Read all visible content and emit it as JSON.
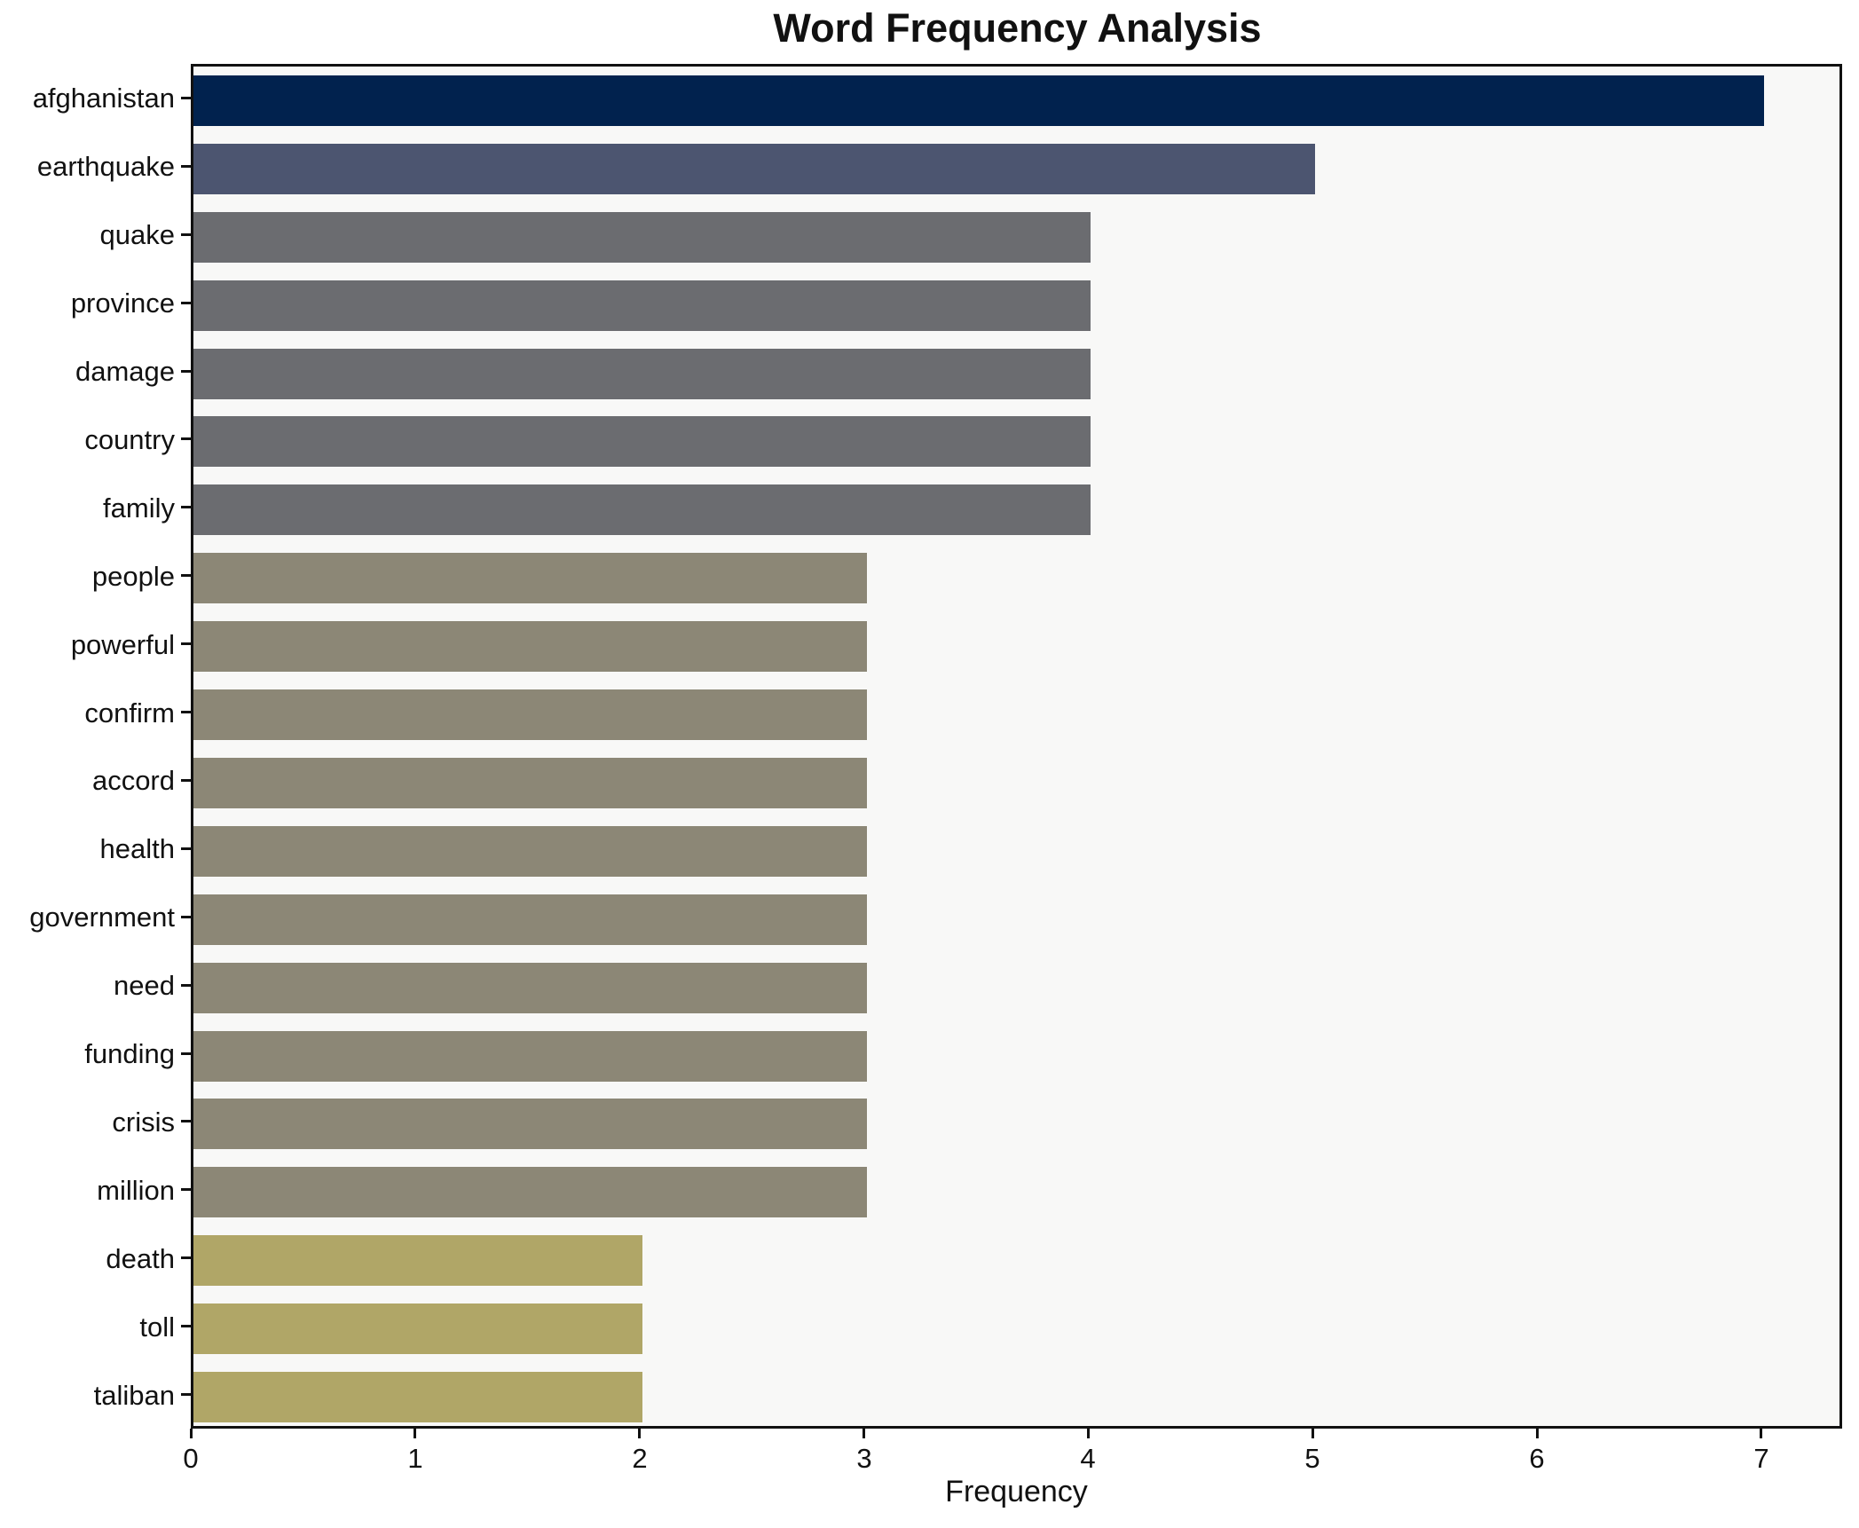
{
  "figure": {
    "background": "#ffffff",
    "plot_background": "#f8f8f7",
    "spine_color": "#111111",
    "text_color": "#111111"
  },
  "chart_data": {
    "type": "bar",
    "orientation": "horizontal",
    "title": "Word Frequency Analysis",
    "xlabel": "Frequency",
    "ylabel": "",
    "grid": false,
    "legend_position": "none",
    "xlim": [
      0,
      7.36
    ],
    "xticks": [
      0,
      1,
      2,
      3,
      4,
      5,
      6,
      7
    ],
    "categories": [
      "afghanistan",
      "earthquake",
      "quake",
      "province",
      "damage",
      "country",
      "family",
      "people",
      "powerful",
      "confirm",
      "accord",
      "health",
      "government",
      "need",
      "funding",
      "crisis",
      "million",
      "death",
      "toll",
      "taliban"
    ],
    "values": [
      7,
      5,
      4,
      4,
      4,
      4,
      4,
      3,
      3,
      3,
      3,
      3,
      3,
      3,
      3,
      3,
      3,
      2,
      2,
      2
    ],
    "bar_colors": [
      "#01224E",
      "#4C5570",
      "#6B6C70",
      "#6B6C70",
      "#6B6C70",
      "#6B6C70",
      "#6B6C70",
      "#8C8776",
      "#8C8776",
      "#8C8776",
      "#8C8776",
      "#8C8776",
      "#8C8776",
      "#8C8776",
      "#8C8776",
      "#8C8776",
      "#8C8776",
      "#B0A667",
      "#B0A667",
      "#B0A667"
    ]
  }
}
